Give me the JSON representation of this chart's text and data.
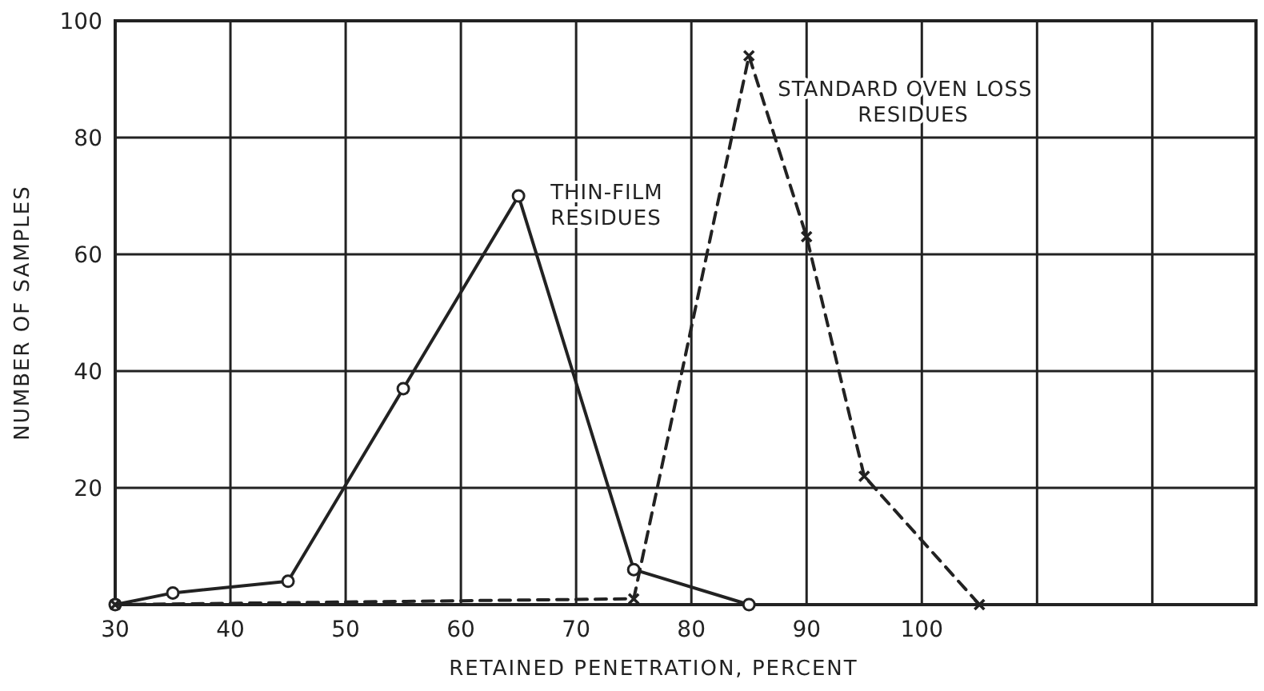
{
  "chart_data": {
    "type": "line",
    "xlabel": "RETAINED PENETRATION, PERCENT",
    "ylabel": "NUMBER OF SAMPLES",
    "xlim": [
      30,
      129
    ],
    "xticks": [
      30,
      40,
      50,
      60,
      70,
      80,
      90,
      100,
      {
        "value": 110,
        "label": null
      },
      {
        "value": 120,
        "label": null
      }
    ],
    "ylim": [
      0,
      100
    ],
    "yticks": [
      {
        "value": 0,
        "label": null
      },
      20,
      40,
      60,
      80,
      100
    ],
    "grid": true,
    "series": [
      {
        "name": "THIN-FILM RESIDUES",
        "color": "#222222",
        "x": [
          30,
          35,
          45,
          55,
          65,
          75,
          85
        ],
        "values": [
          0,
          2,
          4,
          37,
          70,
          6,
          0
        ],
        "marker": "circle",
        "line_style": "solid"
      },
      {
        "name": "STANDARD OVEN LOSS RESIDUES",
        "color": "#222222",
        "x": [
          30,
          75,
          85,
          90,
          95,
          105
        ],
        "values": [
          0,
          1,
          94,
          63,
          22,
          0
        ],
        "marker": "cross",
        "line_style": "dashed"
      }
    ]
  }
}
